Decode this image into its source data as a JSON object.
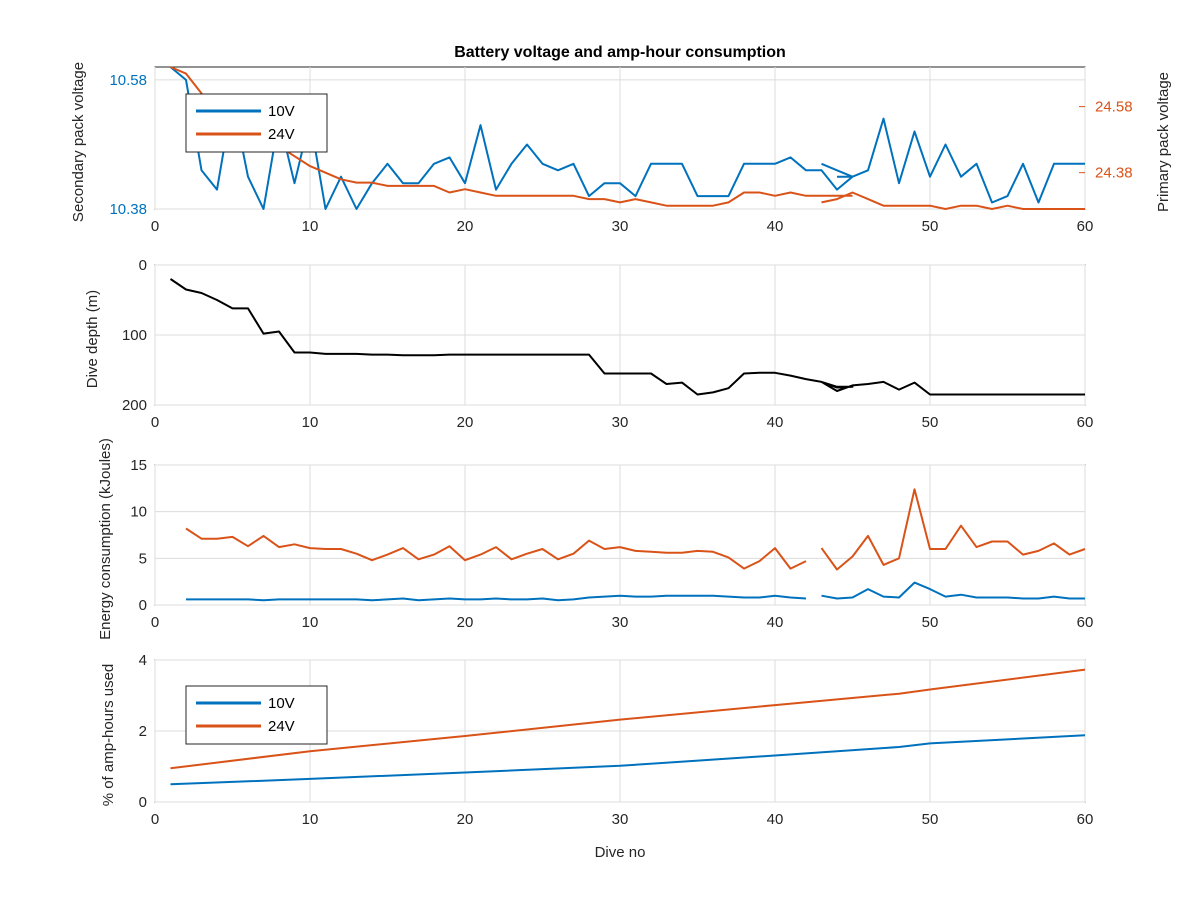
{
  "figure": {
    "title": "Battery voltage and amp-hour consumption",
    "xlabel": "Dive no"
  },
  "colors": {
    "blue": "#0072BD",
    "orange": "#D95319",
    "black": "#000000",
    "axis": "#262626"
  },
  "chart_data": [
    {
      "type": "line",
      "title": "Battery voltage and amp-hour consumption",
      "xlabel": "",
      "xlim": [
        0,
        60
      ],
      "xticks": [
        0,
        10,
        20,
        30,
        40,
        50,
        60
      ],
      "ylabel": "Secondary pack voltage",
      "ylim": [
        10.38,
        10.6
      ],
      "yticks": [
        10.38,
        10.58
      ],
      "ylabel_right": "Primary pack voltage",
      "ylim_right": [
        24.27,
        24.7
      ],
      "yticks_right": [
        24.38,
        24.58
      ],
      "grid": true,
      "legend": {
        "placement": "top-left",
        "entries": [
          "10V",
          "24V"
        ]
      },
      "series": [
        {
          "name": "10V",
          "color": "#0072BD",
          "axis": "left",
          "x": [
            1,
            2,
            3,
            4,
            5,
            6,
            7,
            8,
            9,
            10,
            11,
            12,
            13,
            14,
            15,
            16,
            17,
            18,
            19,
            20,
            21,
            22,
            23,
            24,
            25,
            26,
            27,
            28,
            29,
            30,
            31,
            32,
            33,
            34,
            35,
            36,
            37,
            38,
            39,
            40,
            41,
            42,
            43,
            44,
            45,
            44,
            43,
            null,
            44,
            45,
            46,
            47,
            48,
            49,
            50,
            51,
            52,
            53,
            54,
            55,
            56,
            57,
            58,
            59,
            60
          ],
          "y": [
            10.6,
            10.58,
            10.44,
            10.41,
            10.55,
            10.43,
            10.38,
            10.52,
            10.42,
            10.52,
            10.38,
            10.43,
            10.38,
            10.42,
            10.45,
            10.42,
            10.42,
            10.45,
            10.46,
            10.42,
            10.51,
            10.41,
            10.45,
            10.48,
            10.45,
            10.44,
            10.45,
            10.4,
            10.42,
            10.42,
            10.4,
            10.45,
            10.45,
            10.45,
            10.4,
            10.4,
            10.4,
            10.45,
            10.45,
            10.45,
            10.46,
            10.44,
            10.44,
            10.41,
            10.43,
            10.44,
            10.45,
            null,
            10.43,
            10.43,
            10.44,
            10.52,
            10.42,
            10.5,
            10.43,
            10.48,
            10.43,
            10.45,
            10.39,
            10.4,
            10.45,
            10.39,
            10.45,
            10.45,
            10.45
          ]
        },
        {
          "name": "24V",
          "color": "#D95319",
          "axis": "right",
          "x": [
            1,
            2,
            3,
            4,
            5,
            6,
            7,
            8,
            9,
            10,
            11,
            12,
            13,
            14,
            15,
            16,
            17,
            18,
            19,
            20,
            21,
            22,
            23,
            24,
            25,
            26,
            27,
            28,
            29,
            30,
            31,
            32,
            33,
            34,
            35,
            36,
            37,
            38,
            39,
            40,
            41,
            42,
            43,
            44,
            45,
            null,
            43,
            44,
            45,
            46,
            47,
            48,
            49,
            50,
            51,
            52,
            53,
            54,
            55,
            56,
            57,
            58,
            59,
            60
          ],
          "y": [
            24.7,
            24.68,
            24.62,
            24.55,
            24.52,
            24.5,
            24.48,
            24.46,
            24.43,
            24.4,
            24.38,
            24.36,
            24.35,
            24.35,
            24.34,
            24.34,
            24.34,
            24.34,
            24.32,
            24.33,
            24.32,
            24.31,
            24.31,
            24.31,
            24.31,
            24.31,
            24.31,
            24.3,
            24.3,
            24.29,
            24.3,
            24.29,
            24.28,
            24.28,
            24.28,
            24.28,
            24.29,
            24.32,
            24.32,
            24.31,
            24.32,
            24.31,
            24.31,
            24.31,
            24.31,
            null,
            24.29,
            24.3,
            24.32,
            24.3,
            24.28,
            24.28,
            24.28,
            24.28,
            24.27,
            24.28,
            24.28,
            24.27,
            24.28,
            24.27,
            24.27,
            24.27,
            24.27,
            24.27
          ]
        }
      ]
    },
    {
      "type": "line",
      "xlabel": "",
      "xlim": [
        0,
        60
      ],
      "xticks": [
        0,
        10,
        20,
        30,
        40,
        50,
        60
      ],
      "ylabel": "Dive depth (m)",
      "ylim": [
        0,
        200
      ],
      "yticks": [
        0,
        100,
        200
      ],
      "yaxis_reversed": true,
      "grid": true,
      "series": [
        {
          "name": "",
          "color": "#000000",
          "x": [
            1,
            2,
            3,
            4,
            5,
            6,
            7,
            8,
            9,
            10,
            11,
            12,
            13,
            14,
            15,
            16,
            17,
            18,
            19,
            20,
            21,
            22,
            23,
            24,
            25,
            26,
            27,
            28,
            29,
            30,
            31,
            32,
            33,
            34,
            35,
            36,
            37,
            38,
            39,
            40,
            41,
            42,
            43,
            44,
            45,
            44,
            43,
            44,
            45,
            46,
            47,
            48,
            49,
            50,
            51,
            52,
            53,
            54,
            55,
            56,
            57,
            58,
            59,
            60
          ],
          "y": [
            20,
            35,
            40,
            50,
            62,
            62,
            98,
            95,
            125,
            125,
            127,
            127,
            127,
            128,
            128,
            129,
            129,
            129,
            128,
            128,
            128,
            128,
            128,
            128,
            128,
            128,
            128,
            128,
            155,
            155,
            155,
            155,
            170,
            168,
            185,
            182,
            176,
            155,
            154,
            154,
            158,
            163,
            167,
            174,
            174,
            175,
            167,
            180,
            172,
            170,
            167,
            178,
            168,
            185,
            185,
            185,
            185,
            185,
            185,
            185,
            185,
            185,
            185,
            185
          ]
        }
      ]
    },
    {
      "type": "line",
      "xlabel": "",
      "xlim": [
        0,
        60
      ],
      "xticks": [
        0,
        10,
        20,
        30,
        40,
        50,
        60
      ],
      "ylabel": "Energy consumption (kJoules)",
      "ylim": [
        0,
        15
      ],
      "yticks": [
        0,
        5,
        10,
        15
      ],
      "grid": true,
      "series": [
        {
          "name": "10V",
          "color": "#0072BD",
          "x": [
            2,
            3,
            4,
            5,
            6,
            7,
            8,
            9,
            10,
            11,
            12,
            13,
            14,
            15,
            16,
            17,
            18,
            19,
            20,
            21,
            22,
            23,
            24,
            25,
            26,
            27,
            28,
            29,
            30,
            31,
            32,
            33,
            34,
            35,
            36,
            37,
            38,
            39,
            40,
            41,
            42,
            null,
            43,
            44,
            45,
            46,
            47,
            48,
            49,
            50,
            51,
            52,
            53,
            54,
            55,
            56,
            57,
            58,
            59,
            60
          ],
          "y": [
            0.6,
            0.6,
            0.6,
            0.6,
            0.6,
            0.5,
            0.6,
            0.6,
            0.6,
            0.6,
            0.6,
            0.6,
            0.5,
            0.6,
            0.7,
            0.5,
            0.6,
            0.7,
            0.6,
            0.6,
            0.7,
            0.6,
            0.6,
            0.7,
            0.5,
            0.6,
            0.8,
            0.9,
            1.0,
            0.9,
            0.9,
            1.0,
            1.0,
            1.0,
            1.0,
            0.9,
            0.8,
            0.8,
            1.0,
            0.8,
            0.7,
            null,
            1.0,
            0.7,
            0.8,
            1.7,
            0.9,
            0.8,
            2.4,
            1.7,
            0.9,
            1.1,
            0.8,
            0.8,
            0.8,
            0.7,
            0.7,
            0.9,
            0.7,
            0.7
          ]
        },
        {
          "name": "24V",
          "color": "#D95319",
          "x": [
            2,
            3,
            4,
            5,
            6,
            7,
            8,
            9,
            10,
            11,
            12,
            13,
            14,
            15,
            16,
            17,
            18,
            19,
            20,
            21,
            22,
            23,
            24,
            25,
            26,
            27,
            28,
            29,
            30,
            31,
            32,
            33,
            34,
            35,
            36,
            37,
            38,
            39,
            40,
            41,
            42,
            null,
            43,
            44,
            45,
            46,
            47,
            48,
            49,
            50,
            51,
            52,
            53,
            54,
            55,
            56,
            57,
            58,
            59,
            60
          ],
          "y": [
            8.2,
            7.1,
            7.1,
            7.3,
            6.3,
            7.4,
            6.2,
            6.5,
            6.1,
            6.0,
            6.0,
            5.5,
            4.8,
            5.4,
            6.1,
            4.9,
            5.4,
            6.3,
            4.8,
            5.4,
            6.2,
            4.9,
            5.5,
            6.0,
            4.9,
            5.5,
            6.9,
            6.0,
            6.2,
            5.8,
            5.7,
            5.6,
            5.6,
            5.8,
            5.7,
            5.1,
            3.9,
            4.7,
            6.1,
            3.9,
            4.7,
            null,
            6.1,
            3.8,
            5.2,
            7.4,
            4.3,
            5.0,
            12.4,
            6.0,
            6.0,
            8.5,
            6.2,
            6.8,
            6.8,
            5.4,
            5.8,
            6.6,
            5.4,
            6.0
          ]
        }
      ]
    },
    {
      "type": "line",
      "xlabel": "Dive no",
      "xlim": [
        0,
        60
      ],
      "xticks": [
        0,
        10,
        20,
        30,
        40,
        50,
        60
      ],
      "ylabel": "% of amp-hours used",
      "ylim": [
        0,
        4
      ],
      "yticks": [
        0,
        2,
        4
      ],
      "grid": true,
      "legend": {
        "placement": "top-left",
        "entries": [
          "10V",
          "24V"
        ]
      },
      "series": [
        {
          "name": "10V",
          "color": "#0072BD",
          "x": [
            1,
            10,
            20,
            30,
            40,
            48,
            50,
            60
          ],
          "y": [
            0.5,
            0.65,
            0.83,
            1.02,
            1.31,
            1.55,
            1.65,
            1.88
          ]
        },
        {
          "name": "24V",
          "color": "#D95319",
          "x": [
            1,
            10,
            20,
            30,
            40,
            48,
            50,
            60
          ],
          "y": [
            0.95,
            1.43,
            1.86,
            2.32,
            2.73,
            3.05,
            3.17,
            3.73
          ]
        }
      ]
    }
  ]
}
